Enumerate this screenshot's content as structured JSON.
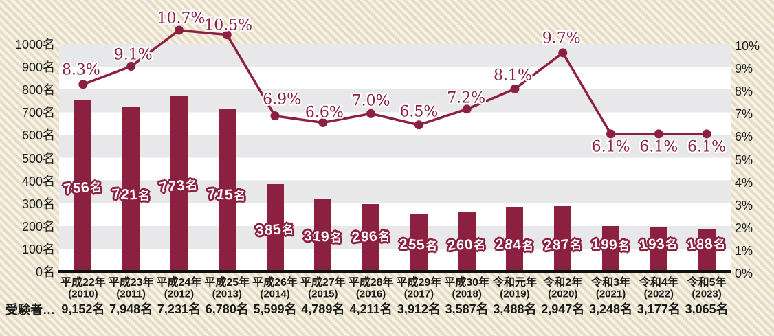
{
  "chart_data": {
    "type": "bar+line",
    "categories": [
      "平成22年",
      "平成23年",
      "平成24年",
      "平成25年",
      "平成26年",
      "平成27年",
      "平成28年",
      "平成29年",
      "平成30年",
      "令和元年",
      "令和2年",
      "令和3年",
      "令和4年",
      "令和5年"
    ],
    "category_years": [
      "(2010)",
      "(2011)",
      "(2012)",
      "(2013)",
      "(2014)",
      "(2015)",
      "(2016)",
      "(2017)",
      "(2018)",
      "(2019)",
      "(2020)",
      "(2021)",
      "(2022)",
      "(2023)"
    ],
    "bar_series": {
      "unit": "名",
      "values": [
        756,
        721,
        773,
        715,
        385,
        319,
        296,
        255,
        260,
        284,
        287,
        199,
        193,
        188
      ],
      "labels": [
        "756名",
        "721名",
        "773名",
        "715名",
        "385名",
        "319名",
        "296名",
        "255名",
        "260名",
        "284名",
        "287名",
        "199名",
        "193名",
        "188名"
      ]
    },
    "line_series": {
      "unit": "%",
      "values": [
        8.3,
        9.1,
        10.7,
        10.5,
        6.9,
        6.6,
        7.0,
        6.5,
        7.2,
        8.1,
        9.7,
        6.1,
        6.1,
        6.1
      ],
      "labels": [
        "8.3%",
        "9.1%",
        "10.7%",
        "10.5%",
        "6.9%",
        "6.6%",
        "7.0%",
        "6.5%",
        "7.2%",
        "8.1%",
        "9.7%",
        "6.1%",
        "6.1%",
        "6.1%"
      ]
    },
    "examinees_row": {
      "label": "受験者…",
      "values": [
        "9,152名",
        "7,948名",
        "7,231名",
        "6,780名",
        "5,599名",
        "4,789名",
        "4,211名",
        "3,912名",
        "3,587名",
        "3,488名",
        "2,947名",
        "3,248名",
        "3,177名",
        "3,065名"
      ]
    },
    "left_axis": {
      "min": 0,
      "max": 1000,
      "ticks": [
        "0名",
        "100名",
        "200名",
        "300名",
        "400名",
        "500名",
        "600名",
        "700名",
        "800名",
        "900名",
        "1000名"
      ]
    },
    "right_axis": {
      "min": 0,
      "max": 10,
      "ticks": [
        "0%",
        "1%",
        "2%",
        "3%",
        "4%",
        "5%",
        "6%",
        "7%",
        "8%",
        "9%",
        "10%"
      ]
    },
    "grid": "horizontal-bands",
    "legend": "none",
    "colors": {
      "bar": "#8c2041",
      "line": "#8c2041",
      "marker": "#8c2041",
      "percent_text": "#8e1f42",
      "bar_label_fill": "#ffffff",
      "bar_label_outline": "#8c2041",
      "band_gray": "#e8e7ea",
      "band_white": "#ffffff",
      "stripe_dark": "#e6dcc3",
      "stripe_light": "#f7f3e8",
      "axis_line": "#111111",
      "text": "#1a1a1a"
    }
  }
}
